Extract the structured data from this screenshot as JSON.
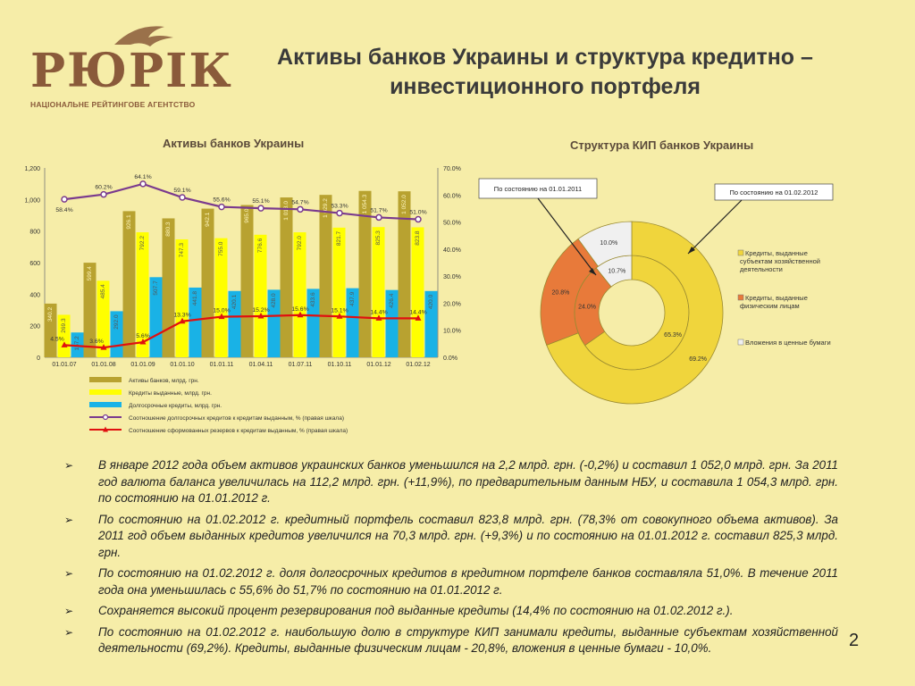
{
  "logo": {
    "word": "РЮРІК",
    "subtitle": "НАЦІОНАЛЬНЕ РЕЙТИНГОВЕ АГЕНТСТВО"
  },
  "title": {
    "line1": "Активы банков Украины и структура кредитно –",
    "line2": "инвестиционного портфеля"
  },
  "page_number": "2",
  "colors": {
    "background": "#f6eda8",
    "assets": "#b8a230",
    "credits": "#ffff00",
    "longterm": "#19b2e6",
    "ratio_line": "#7a3a8e",
    "reserves_line": "#e01010",
    "pie_business": "#f0d53c",
    "pie_individuals": "#e87a3a",
    "pie_securities": "#f0f0f0"
  },
  "chart_data": [
    {
      "type": "bar",
      "title": "Активы банков Украины",
      "categories": [
        "01.01.07",
        "01.01.08",
        "01.01.09",
        "01.01.10",
        "01.01.11",
        "01.04.11",
        "01.07.11",
        "01.10.11",
        "01.01.12",
        "01.02.12"
      ],
      "ylim": [
        0,
        1200
      ],
      "yticks": [
        "0",
        "200",
        "400",
        "600",
        "800",
        "1,000",
        "1,200"
      ],
      "y2lim": [
        0,
        70
      ],
      "y2ticks": [
        "0.0%",
        "10.0%",
        "20.0%",
        "30.0%",
        "40.0%",
        "50.0%",
        "60.0%",
        "70.0%"
      ],
      "series": [
        {
          "name": "Активы банков, млрд. грн.",
          "kind": "bar",
          "values": [
            340.2,
            599.4,
            926.1,
            880.3,
            942.1,
            965.0,
            1013.0,
            1029.2,
            1054.3,
            1052.0
          ],
          "labels": [
            "340.2",
            "599.4",
            "926.1",
            "880.3",
            "942.1",
            "965.0",
            "1 013.0",
            "1 029.2",
            "1 054.3",
            "1 052.0"
          ]
        },
        {
          "name": "Кредиты выданные, млрд. грн.",
          "kind": "bar",
          "values": [
            269.3,
            485.4,
            792.2,
            747.3,
            755.0,
            776.6,
            792.0,
            821.7,
            825.3,
            823.8
          ],
          "labels": [
            "269.3",
            "485.4",
            "792.2",
            "747.3",
            "755.0",
            "776.6",
            "792.0",
            "821.7",
            "825.3",
            "823.8"
          ]
        },
        {
          "name": "Долгосрочные кредиты, млрд. грн.",
          "kind": "bar",
          "values": [
            157.2,
            292.0,
            507.7,
            441.8,
            420.1,
            428.0,
            433.6,
            437.9,
            426.4,
            420.0
          ],
          "labels": [
            "157.2",
            "292.0",
            "507.7",
            "441.8",
            "420.1",
            "428.0",
            "433.6",
            "437.9",
            "426.4",
            "420.0"
          ]
        },
        {
          "name": "Соотношение долгосрочных кредитов к кредитам выданным, % (правая шкала)",
          "kind": "line",
          "values": [
            58.4,
            60.2,
            64.1,
            59.1,
            55.6,
            55.1,
            54.7,
            53.3,
            51.7,
            51.0
          ],
          "labels": [
            "58.4%",
            "60.2%",
            "64.1%",
            "59.1%",
            "55.6%",
            "55.1%",
            "54.7%",
            "53.3%",
            "51.7%",
            "51.0%"
          ]
        },
        {
          "name": "Соотношение сформованных резервов к кредитам выданным, % (правая шкала)",
          "kind": "line",
          "values": [
            4.5,
            3.6,
            5.6,
            13.3,
            15.0,
            15.2,
            15.6,
            15.1,
            14.4,
            14.4
          ],
          "labels": [
            "4.5%",
            "3.6%",
            "5.6%",
            "13.3%",
            "15.0%",
            "15.2%",
            "15.6%",
            "15.1%",
            "14.4%",
            "14.4%"
          ]
        }
      ]
    },
    {
      "type": "pie",
      "title": "Структура КИП банков Украины",
      "categories": [
        "Кредиты, выданные субъектам хозяйственной деятельности",
        "Кредиты, выданные физическим лицам",
        "Вложения в ценные бумаги"
      ],
      "series": [
        {
          "name": "По состоянию на 01.01.2011",
          "ring": "inner",
          "values": [
            65.3,
            24.0,
            10.7
          ],
          "labels": [
            "65.3%",
            "24.0%",
            "10.7%"
          ]
        },
        {
          "name": "По состоянию на 01.02.2012",
          "ring": "outer",
          "values": [
            69.2,
            20.8,
            10.0
          ],
          "labels": [
            "69.2%",
            "20.8%",
            "10.0%"
          ]
        }
      ]
    }
  ],
  "bullets": [
    "В январе 2012 года объем активов украинских банков уменьшился на 2,2 млрд. грн. (-0,2%) и составил 1 052,0 млрд. грн. За 2011 год валюта баланса увеличилась на 112,2 млрд. грн. (+11,9%), по предварительным данным НБУ, и составила 1 054,3 млрд. грн. по состоянию на 01.01.2012 г.",
    "По состоянию на 01.02.2012 г. кредитный портфель составил 823,8 млрд. грн. (78,3% от совокупного объема активов). За 2011 год объем выданных кредитов увеличился на 70,3 млрд. грн. (+9,3%) и по состоянию на 01.01.2012 г. составил 825,3 млрд. грн.",
    "По состоянию на 01.02.2012 г. доля долгосрочных кредитов в кредитном портфеле банков составляла 51,0%. В течение 2011 года она уменьшилась с 55,6% до 51,7% по состоянию на 01.01.2012 г.",
    "Сохраняется высокий процент резервирования под выданные кредиты (14,4% по состоянию на 01.02.2012 г.).",
    "По состоянию на 01.02.2012 г. наибольшую долю в структуре КИП занимали кредиты, выданные субъектам хозяйственной деятельности (69,2%). Кредиты, выданные физическим лицам - 20,8%, вложения в ценные бумаги - 10,0%."
  ],
  "bullet_mark": "➢"
}
